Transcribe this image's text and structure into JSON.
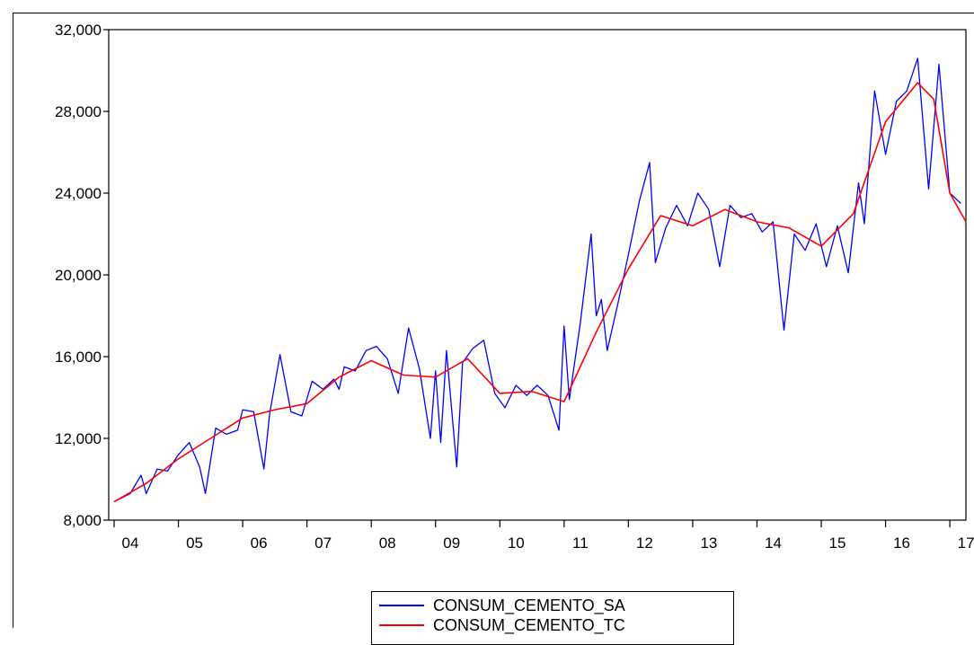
{
  "chart_data": {
    "type": "line",
    "title": "",
    "xlabel": "",
    "ylabel": "",
    "x_range": [
      2004.0,
      2017.25
    ],
    "ylim": [
      8000,
      32000
    ],
    "y_ticks": [
      8000,
      12000,
      16000,
      20000,
      24000,
      28000,
      32000
    ],
    "y_tick_labels": [
      "8,000",
      "12,000",
      "16,000",
      "20,000",
      "24,000",
      "28,000",
      "32,000"
    ],
    "x_ticks": [
      2004,
      2005,
      2006,
      2007,
      2008,
      2009,
      2010,
      2011,
      2012,
      2013,
      2014,
      2015,
      2016,
      2017
    ],
    "x_tick_labels": [
      "04",
      "05",
      "06",
      "07",
      "08",
      "09",
      "10",
      "11",
      "12",
      "13",
      "14",
      "15",
      "16",
      "17"
    ],
    "grid": false,
    "legend_position": "bottom-center",
    "series": [
      {
        "name": "CONSUM_CEMENTO_SA",
        "color": "#0000ff",
        "points": [
          [
            2004.0,
            8900
          ],
          [
            2004.25,
            9300
          ],
          [
            2004.42,
            10200
          ],
          [
            2004.5,
            9300
          ],
          [
            2004.67,
            10500
          ],
          [
            2004.83,
            10400
          ],
          [
            2005.0,
            11200
          ],
          [
            2005.17,
            11800
          ],
          [
            2005.33,
            10600
          ],
          [
            2005.42,
            9300
          ],
          [
            2005.58,
            12500
          ],
          [
            2005.75,
            12200
          ],
          [
            2005.92,
            12400
          ],
          [
            2006.0,
            13400
          ],
          [
            2006.17,
            13300
          ],
          [
            2006.33,
            10500
          ],
          [
            2006.42,
            13200
          ],
          [
            2006.58,
            16100
          ],
          [
            2006.75,
            13300
          ],
          [
            2006.92,
            13100
          ],
          [
            2007.08,
            14800
          ],
          [
            2007.25,
            14400
          ],
          [
            2007.42,
            14900
          ],
          [
            2007.5,
            14400
          ],
          [
            2007.58,
            15500
          ],
          [
            2007.75,
            15300
          ],
          [
            2007.92,
            16300
          ],
          [
            2008.08,
            16500
          ],
          [
            2008.25,
            15900
          ],
          [
            2008.42,
            14200
          ],
          [
            2008.58,
            17400
          ],
          [
            2008.75,
            15400
          ],
          [
            2008.92,
            12000
          ],
          [
            2009.0,
            15300
          ],
          [
            2009.08,
            11800
          ],
          [
            2009.17,
            16300
          ],
          [
            2009.33,
            10600
          ],
          [
            2009.42,
            15700
          ],
          [
            2009.58,
            16400
          ],
          [
            2009.75,
            16800
          ],
          [
            2009.92,
            14200
          ],
          [
            2010.08,
            13500
          ],
          [
            2010.25,
            14600
          ],
          [
            2010.42,
            14100
          ],
          [
            2010.58,
            14600
          ],
          [
            2010.75,
            14100
          ],
          [
            2010.92,
            12400
          ],
          [
            2011.0,
            17500
          ],
          [
            2011.08,
            13900
          ],
          [
            2011.25,
            17600
          ],
          [
            2011.42,
            22000
          ],
          [
            2011.5,
            18000
          ],
          [
            2011.58,
            18800
          ],
          [
            2011.67,
            16300
          ],
          [
            2011.83,
            18500
          ],
          [
            2012.0,
            21000
          ],
          [
            2012.17,
            23600
          ],
          [
            2012.33,
            25500
          ],
          [
            2012.42,
            20600
          ],
          [
            2012.58,
            22300
          ],
          [
            2012.75,
            23400
          ],
          [
            2012.92,
            22400
          ],
          [
            2013.08,
            24000
          ],
          [
            2013.25,
            23200
          ],
          [
            2013.42,
            20400
          ],
          [
            2013.58,
            23400
          ],
          [
            2013.75,
            22800
          ],
          [
            2013.92,
            23000
          ],
          [
            2014.08,
            22100
          ],
          [
            2014.25,
            22600
          ],
          [
            2014.42,
            17300
          ],
          [
            2014.58,
            22000
          ],
          [
            2014.75,
            21200
          ],
          [
            2014.92,
            22500
          ],
          [
            2015.08,
            20400
          ],
          [
            2015.25,
            22400
          ],
          [
            2015.42,
            20100
          ],
          [
            2015.58,
            24500
          ],
          [
            2015.67,
            22500
          ],
          [
            2015.83,
            29000
          ],
          [
            2016.0,
            25900
          ],
          [
            2016.17,
            28500
          ],
          [
            2016.33,
            29000
          ],
          [
            2016.5,
            30600
          ],
          [
            2016.67,
            24200
          ],
          [
            2016.83,
            30300
          ],
          [
            2017.0,
            24000
          ],
          [
            2017.17,
            23500
          ]
        ]
      },
      {
        "name": "CONSUM_CEMENTO_TC",
        "color": "#ff0000",
        "points": [
          [
            2004.0,
            8900
          ],
          [
            2004.5,
            9800
          ],
          [
            2005.0,
            11000
          ],
          [
            2005.5,
            12000
          ],
          [
            2006.0,
            13000
          ],
          [
            2006.5,
            13400
          ],
          [
            2007.0,
            13700
          ],
          [
            2007.5,
            15000
          ],
          [
            2008.0,
            15800
          ],
          [
            2008.5,
            15100
          ],
          [
            2009.0,
            15000
          ],
          [
            2009.5,
            15900
          ],
          [
            2010.0,
            14200
          ],
          [
            2010.5,
            14300
          ],
          [
            2011.0,
            13800
          ],
          [
            2011.5,
            17200
          ],
          [
            2012.0,
            20300
          ],
          [
            2012.5,
            22900
          ],
          [
            2013.0,
            22400
          ],
          [
            2013.5,
            23200
          ],
          [
            2014.0,
            22600
          ],
          [
            2014.5,
            22300
          ],
          [
            2015.0,
            21400
          ],
          [
            2015.5,
            23000
          ],
          [
            2016.0,
            27500
          ],
          [
            2016.5,
            29400
          ],
          [
            2016.75,
            28600
          ],
          [
            2017.0,
            24000
          ],
          [
            2017.25,
            22600
          ]
        ]
      }
    ]
  }
}
